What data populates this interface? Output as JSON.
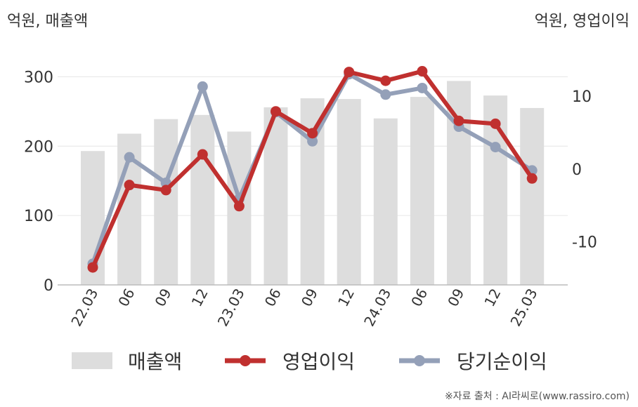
{
  "units": {
    "left": "억원, 매출액",
    "right": "억원, 영업이익"
  },
  "legend": {
    "revenue": "매출액",
    "operating_profit": "영업이익",
    "net_profit": "당기순이익"
  },
  "source": "※자료 출처 : AI라씨로(www.rassiro.com)",
  "colors": {
    "revenue": "#dddddd",
    "operating_profit": "#c0302f",
    "net_profit": "#94a0b8"
  },
  "chart_data": {
    "type": "bar",
    "categories": [
      "22.03",
      "06",
      "09",
      "12",
      "23.03",
      "06",
      "09",
      "12",
      "24.03",
      "06",
      "09",
      "12",
      "25.03"
    ],
    "grid": true,
    "legend_position": "bottom",
    "left_axis": {
      "ylim": [
        0,
        350
      ],
      "ticks": [
        0,
        100,
        200,
        300
      ]
    },
    "right_axis": {
      "ylim": [
        -15.9,
        17.4
      ],
      "ticks": [
        -10,
        0,
        10
      ]
    },
    "series": [
      {
        "name": "매출액",
        "type": "bar",
        "axis": "left",
        "values": [
          193,
          218,
          239,
          245,
          221,
          256,
          269,
          268,
          240,
          271,
          294,
          273,
          255
        ]
      },
      {
        "name": "영업이익",
        "type": "line",
        "axis": "right",
        "values": [
          -13.5,
          -2.2,
          -2.9,
          2.0,
          -5.1,
          7.9,
          4.9,
          13.3,
          12.1,
          13.4,
          6.6,
          6.2,
          -1.3
        ]
      },
      {
        "name": "당기순이익",
        "type": "line",
        "axis": "right",
        "values": [
          -13.0,
          1.6,
          -1.9,
          11.3,
          -4.1,
          7.8,
          3.8,
          13.0,
          10.2,
          11.1,
          5.8,
          3.0,
          -0.2
        ]
      }
    ]
  }
}
